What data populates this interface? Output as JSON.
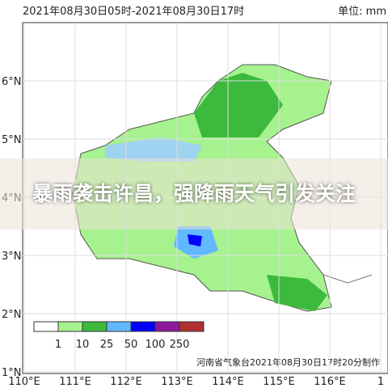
{
  "header": {
    "time_range": "2021年08月30日05时-2021年08月30日17时",
    "unit": "单位: mm"
  },
  "lat_labels": [
    "6°N",
    "5°N",
    "4°N",
    "3°N",
    "2°N",
    "1°N"
  ],
  "lon_labels": [
    "110°E",
    "111°E",
    "112°E",
    "113°E",
    "114°E",
    "115°E",
    "116°E",
    "1"
  ],
  "legend": {
    "labels": [
      "1",
      "10",
      "25",
      "50",
      "100",
      "250"
    ],
    "colors": [
      "#ffffff",
      "#a6f28f",
      "#3dba3d",
      "#61b8ff",
      "#0000fe",
      "#8b1a9a",
      "#b03030"
    ]
  },
  "credit": "河南省气象台2021年08月30日17时20分制作",
  "headline": "暴雨袭击许昌，强降雨天气引发关注"
}
